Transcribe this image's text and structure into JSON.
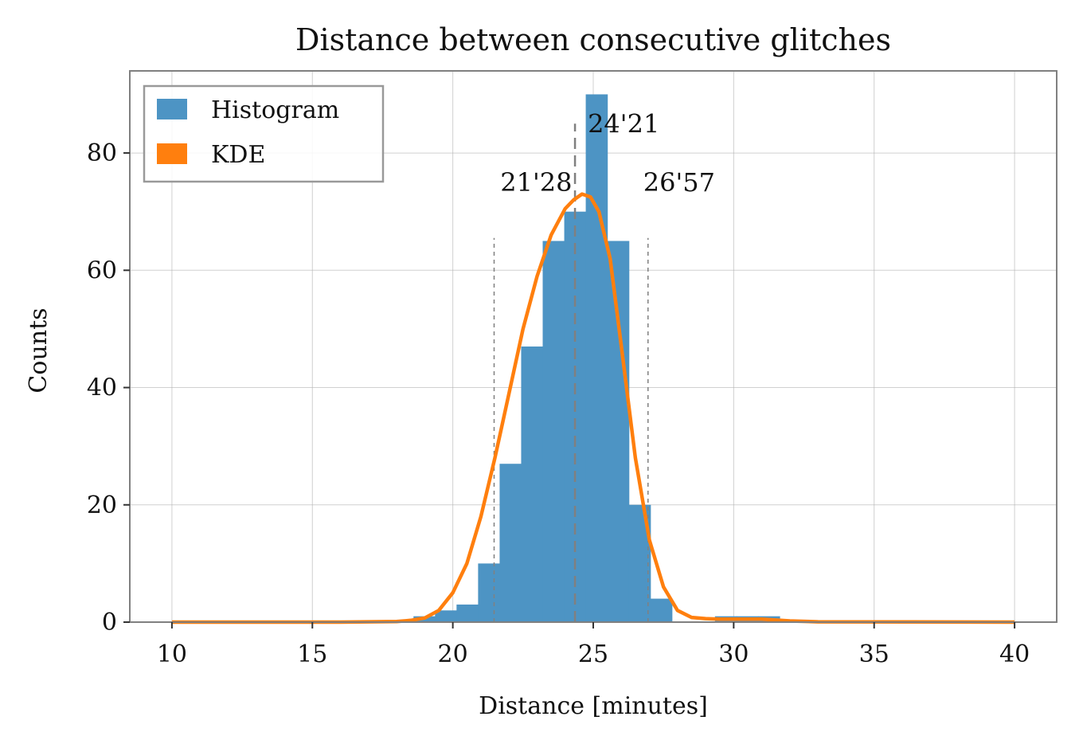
{
  "chart_data": {
    "type": "bar",
    "title": "Distance between consecutive glitches",
    "xlabel": "Distance [minutes]",
    "ylabel": "Counts",
    "xlim": [
      8.5,
      41.5
    ],
    "ylim": [
      0,
      94
    ],
    "xticks": [
      10,
      15,
      20,
      25,
      30,
      35,
      40
    ],
    "yticks": [
      0,
      20,
      40,
      60,
      80
    ],
    "grid": true,
    "legend_position": "top-left",
    "colors": {
      "histogram": "#4d94c4",
      "kde": "#ff7f0e",
      "reference_lines": "#808080"
    },
    "histogram": {
      "name": "Histogram",
      "bin_width": 0.767,
      "bins": [
        {
          "x0": 18.6,
          "count": 1
        },
        {
          "x0": 19.367,
          "count": 2
        },
        {
          "x0": 20.133,
          "count": 3
        },
        {
          "x0": 20.9,
          "count": 10
        },
        {
          "x0": 21.667,
          "count": 27
        },
        {
          "x0": 22.433,
          "count": 47
        },
        {
          "x0": 23.2,
          "count": 65
        },
        {
          "x0": 23.967,
          "count": 70
        },
        {
          "x0": 24.733,
          "count": 90
        },
        {
          "x0": 25.5,
          "count": 65
        },
        {
          "x0": 26.267,
          "count": 20
        },
        {
          "x0": 27.033,
          "count": 4
        },
        {
          "x0": 29.333,
          "count": 1
        },
        {
          "x0": 30.1,
          "count": 1
        },
        {
          "x0": 30.867,
          "count": 1
        }
      ]
    },
    "kde": {
      "name": "KDE",
      "x": [
        10,
        16,
        18,
        18.5,
        19,
        19.5,
        20,
        20.5,
        21,
        21.5,
        22,
        22.5,
        23,
        23.5,
        24,
        24.3,
        24.6,
        24.9,
        25.2,
        25.6,
        26,
        26.5,
        27,
        27.5,
        28,
        28.5,
        29,
        29.5,
        30,
        31,
        32,
        33,
        40
      ],
      "y": [
        0,
        0,
        0.1,
        0.3,
        0.7,
        2,
        5,
        10,
        18,
        28,
        39,
        50,
        59,
        66,
        70.5,
        72,
        73,
        72.5,
        70,
        62,
        47,
        28,
        14,
        6,
        2,
        0.8,
        0.6,
        0.5,
        0.5,
        0.5,
        0.2,
        0.05,
        0
      ]
    },
    "reference_lines": [
      {
        "x": 21.47,
        "label": "21'28",
        "style": "dotted"
      },
      {
        "x": 24.35,
        "label": "24'21",
        "style": "dashed"
      },
      {
        "x": 26.95,
        "label": "26'57",
        "style": "dotted"
      }
    ]
  }
}
